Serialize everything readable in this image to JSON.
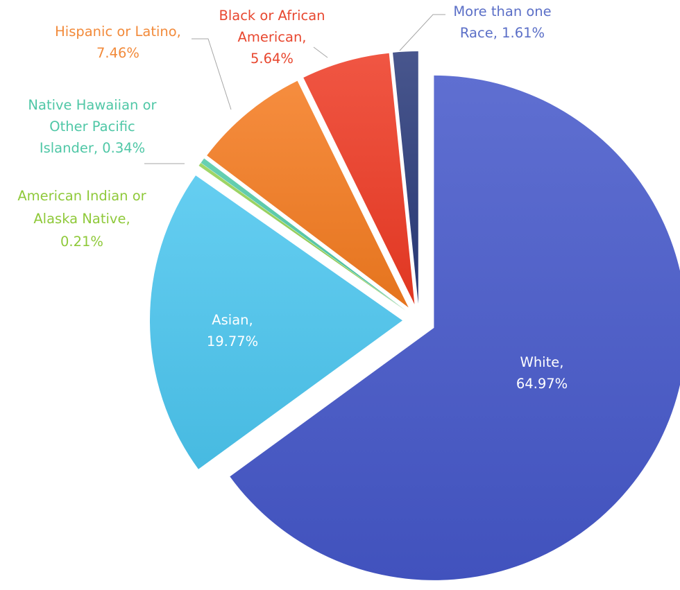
{
  "chart_data": {
    "type": "pie",
    "title": "",
    "slices": [
      {
        "name": "White",
        "value": 64.97,
        "color": "#4557c9",
        "label_color": "#ffffff",
        "label_lines": [
          "White,",
          "64.97%"
        ]
      },
      {
        "name": "Asian",
        "value": 19.77,
        "color": "#4cc6ef",
        "label_color": "#ffffff",
        "label_lines": [
          "Asian,",
          "19.77%"
        ]
      },
      {
        "name": "American Indian or Alaska Native",
        "value": 0.21,
        "color": "#92d050",
        "label_color": "#8fc93a",
        "label_lines": [
          "American Indian or",
          "Alaska Native,",
          "0.21%"
        ]
      },
      {
        "name": "Native Hawaiian or Other Pacific Islander",
        "value": 0.34,
        "color": "#4fc9a7",
        "label_color": "#4fc7a6",
        "label_lines": [
          "Native Hawaiian or",
          "Other Pacific",
          "Islander, 0.34%"
        ]
      },
      {
        "name": "Hispanic or Latino",
        "value": 7.46,
        "color": "#f47b20",
        "label_color": "#f28a3a",
        "label_lines": [
          "Hispanic or Latino,",
          "7.46%"
        ]
      },
      {
        "name": "Black or African American",
        "value": 5.64,
        "color": "#ee3a24",
        "label_color": "#e8472f",
        "label_lines": [
          "Black or African",
          "American,",
          "5.64%"
        ]
      },
      {
        "name": "More than one Race",
        "value": 1.61,
        "color": "#2a3a7a",
        "label_color": "#5b6fc7",
        "label_lines": [
          "More than one",
          "Race, 1.61%"
        ]
      }
    ]
  }
}
